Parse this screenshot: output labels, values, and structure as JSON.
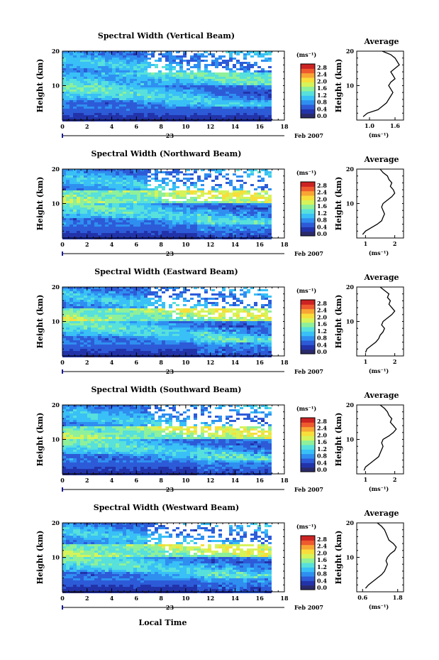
{
  "figure": {
    "x_axis_label": "Local Time",
    "date_day": "23",
    "date_month_year": "Feb 2007"
  },
  "colorbar": {
    "unit_label": "(ms⁻¹)",
    "ticks": [
      "2.8",
      "2.4",
      "2.0",
      "1.6",
      "1.2",
      "0.8",
      "0.4",
      "0.0"
    ],
    "colors": [
      "#2a2a6a",
      "#2233aa",
      "#2d5bd8",
      "#2f8ff0",
      "#39c0f6",
      "#57e0dc",
      "#8ef09a",
      "#d6f35a",
      "#f8de3a",
      "#f8a534",
      "#ee5a2e",
      "#cc2222"
    ]
  },
  "chart_data": [
    {
      "type": "heatmap",
      "title": "Spectral Width (Vertical Beam)",
      "ylabel": "Height (km)",
      "xlim": [
        0,
        18
      ],
      "ylim": [
        0,
        20
      ],
      "x_ticks": [
        "0",
        "2",
        "4",
        "6",
        "8",
        "10",
        "12",
        "14",
        "16",
        "18"
      ],
      "y_ticks": [
        "20",
        "10"
      ],
      "z_range": [
        0,
        2.8
      ],
      "z_unit": "ms⁻¹",
      "profile": {
        "title": "Average",
        "ylabel": "Height (km)",
        "xlabel": "(ms⁻¹)",
        "xlim": [
          0.7,
          1.8
        ],
        "x_ticks": [
          "1.0",
          "1.6"
        ],
        "x_tick_values": [
          1.0,
          1.6
        ],
        "y_ticks": [
          "20",
          "10"
        ],
        "heights": [
          1,
          2,
          3,
          4,
          5,
          6,
          7,
          8,
          9,
          10,
          11,
          12,
          13,
          14,
          15,
          16,
          17,
          18,
          19,
          20
        ],
        "values": [
          0.85,
          0.95,
          1.2,
          1.3,
          1.4,
          1.45,
          1.5,
          1.55,
          1.5,
          1.45,
          1.5,
          1.6,
          1.55,
          1.5,
          1.6,
          1.7,
          1.65,
          1.6,
          1.5,
          1.3
        ]
      }
    },
    {
      "type": "heatmap",
      "title": "Spectral Width (Northward Beam)",
      "ylabel": "Height (km)",
      "xlim": [
        0,
        18
      ],
      "ylim": [
        0,
        20
      ],
      "x_ticks": [
        "0",
        "2",
        "4",
        "6",
        "8",
        "10",
        "12",
        "14",
        "16",
        "18"
      ],
      "y_ticks": [
        "20",
        "10"
      ],
      "z_range": [
        0,
        2.8
      ],
      "z_unit": "ms⁻¹",
      "profile": {
        "title": "Average",
        "ylabel": "Height (km)",
        "xlabel": "(ms⁻¹)",
        "xlim": [
          0.7,
          2.3
        ],
        "x_ticks": [
          "1",
          "2"
        ],
        "x_tick_values": [
          1,
          2
        ],
        "y_ticks": [
          "20",
          "10"
        ],
        "heights": [
          1,
          2,
          3,
          4,
          5,
          6,
          7,
          8,
          9,
          10,
          11,
          12,
          13,
          14,
          15,
          16,
          17,
          18,
          19,
          20
        ],
        "values": [
          0.9,
          1.0,
          1.2,
          1.4,
          1.55,
          1.6,
          1.65,
          1.6,
          1.55,
          1.6,
          1.75,
          1.9,
          2.0,
          1.95,
          1.85,
          1.9,
          1.8,
          1.75,
          1.6,
          1.5
        ]
      }
    },
    {
      "type": "heatmap",
      "title": "Spectral Width (Eastward Beam)",
      "ylabel": "Height (km)",
      "xlim": [
        0,
        18
      ],
      "ylim": [
        0,
        20
      ],
      "x_ticks": [
        "0",
        "2",
        "4",
        "6",
        "8",
        "10",
        "12",
        "14",
        "16",
        "18"
      ],
      "y_ticks": [
        "20",
        "10"
      ],
      "z_range": [
        0,
        2.8
      ],
      "z_unit": "ms⁻¹",
      "profile": {
        "title": "Average",
        "ylabel": "Height (km)",
        "xlabel": "(ms⁻¹)",
        "xlim": [
          0.7,
          2.3
        ],
        "x_ticks": [
          "1",
          "2"
        ],
        "x_tick_values": [
          1,
          2
        ],
        "y_ticks": [
          "20",
          "10"
        ],
        "heights": [
          1,
          2,
          3,
          4,
          5,
          6,
          7,
          8,
          9,
          10,
          11,
          12,
          13,
          14,
          15,
          16,
          17,
          18,
          19,
          20
        ],
        "values": [
          1.0,
          1.05,
          1.2,
          1.35,
          1.45,
          1.5,
          1.6,
          1.65,
          1.55,
          1.6,
          1.75,
          1.9,
          2.0,
          1.9,
          1.8,
          1.85,
          1.75,
          1.8,
          1.65,
          1.5
        ]
      }
    },
    {
      "type": "heatmap",
      "title": "Spectral Width (Southward Beam)",
      "ylabel": "Height (km)",
      "xlim": [
        0,
        18
      ],
      "ylim": [
        0,
        20
      ],
      "x_ticks": [
        "0",
        "2",
        "4",
        "6",
        "8",
        "10",
        "12",
        "14",
        "16",
        "18"
      ],
      "y_ticks": [
        "20",
        "10"
      ],
      "z_range": [
        0,
        2.8
      ],
      "z_unit": "ms⁻¹",
      "profile": {
        "title": "Average",
        "ylabel": "Height (km)",
        "xlabel": "(ms⁻¹)",
        "xlim": [
          0.7,
          2.3
        ],
        "x_ticks": [
          "1",
          "2"
        ],
        "x_tick_values": [
          1,
          2
        ],
        "y_ticks": [
          "20",
          "10"
        ],
        "heights": [
          1,
          2,
          3,
          4,
          5,
          6,
          7,
          8,
          9,
          10,
          11,
          12,
          13,
          14,
          15,
          16,
          17,
          18,
          19,
          20
        ],
        "values": [
          0.95,
          1.0,
          1.15,
          1.3,
          1.45,
          1.5,
          1.55,
          1.6,
          1.55,
          1.6,
          1.8,
          1.95,
          2.05,
          1.95,
          1.85,
          1.9,
          1.8,
          1.75,
          1.65,
          1.5
        ]
      }
    },
    {
      "type": "heatmap",
      "title": "Spectral Width (Westward Beam)",
      "ylabel": "Height (km)",
      "xlim": [
        0,
        18
      ],
      "ylim": [
        0,
        20
      ],
      "x_ticks": [
        "0",
        "2",
        "4",
        "6",
        "8",
        "10",
        "12",
        "14",
        "16",
        "18"
      ],
      "y_ticks": [
        "20",
        "10"
      ],
      "z_range": [
        0,
        2.8
      ],
      "z_unit": "ms⁻¹",
      "profile": {
        "title": "Average",
        "ylabel": "Height (km)",
        "xlabel": "(ms⁻¹)",
        "xlim": [
          0.4,
          2.0
        ],
        "x_ticks": [
          "0.6",
          "1.8"
        ],
        "x_tick_values": [
          0.6,
          1.8
        ],
        "y_ticks": [
          "20",
          "10"
        ],
        "heights": [
          1,
          2,
          3,
          4,
          5,
          6,
          7,
          8,
          9,
          10,
          11,
          12,
          13,
          14,
          15,
          16,
          17,
          18,
          19,
          20
        ],
        "values": [
          0.7,
          0.8,
          0.95,
          1.1,
          1.25,
          1.35,
          1.4,
          1.45,
          1.4,
          1.45,
          1.55,
          1.7,
          1.75,
          1.65,
          1.5,
          1.45,
          1.4,
          1.35,
          1.25,
          1.1
        ]
      }
    }
  ]
}
